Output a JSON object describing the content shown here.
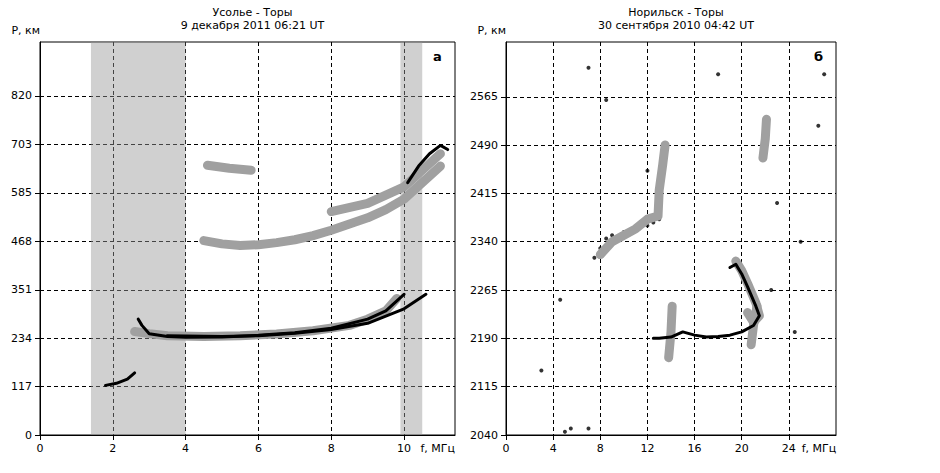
{
  "chart_data": [
    {
      "type": "line",
      "title": "Усолье - Торы",
      "subtitle": "9 декабря 2011 06:21 UT",
      "annotation": "а",
      "x_label": "f, МГц",
      "y_label": "P, км",
      "xlim": [
        0,
        11.4
      ],
      "ylim": [
        0,
        950
      ],
      "xticks": [
        0,
        2,
        4,
        6,
        8,
        10
      ],
      "yticks": [
        0,
        117,
        234,
        351,
        468,
        585,
        703,
        820
      ],
      "grid": true,
      "noise_bands": [
        [
          1.4,
          4.0
        ],
        [
          9.9,
          10.5
        ]
      ],
      "series": [
        {
          "type": "line",
          "color": "#a0a0a0",
          "line_style": "thick",
          "values": [
            [
              2.6,
              250
            ],
            [
              3,
              245
            ],
            [
              3.5,
              240
            ],
            [
              4.5,
              238
            ],
            [
              5.5,
              240
            ],
            [
              6.5,
              244
            ],
            [
              7.5,
              252
            ],
            [
              8.5,
              265
            ],
            [
              9,
              280
            ],
            [
              9.5,
              300
            ],
            [
              9.8,
              330
            ]
          ]
        },
        {
          "type": "line",
          "color": "#a0a0a0",
          "line_style": "thick",
          "values": [
            [
              4.5,
              470
            ],
            [
              5,
              462
            ],
            [
              5.5,
              458
            ],
            [
              6,
              460
            ],
            [
              6.5,
              465
            ],
            [
              7,
              472
            ],
            [
              7.5,
              482
            ],
            [
              8,
              495
            ],
            [
              8.5,
              510
            ],
            [
              9,
              525
            ],
            [
              9.5,
              545
            ],
            [
              10,
              570
            ],
            [
              10.5,
              610
            ],
            [
              11,
              650
            ]
          ]
        },
        {
          "type": "line",
          "color": "#a0a0a0",
          "line_style": "thick",
          "values": [
            [
              8,
              540
            ],
            [
              9,
              560
            ],
            [
              9.5,
              580
            ],
            [
              10,
              600
            ],
            [
              10.5,
              640
            ],
            [
              11,
              680
            ]
          ]
        },
        {
          "type": "line",
          "color": "#a0a0a0",
          "line_style": "thick",
          "values": [
            [
              4.6,
              652
            ],
            [
              5.2,
              645
            ],
            [
              5.8,
              640
            ]
          ]
        },
        {
          "type": "line",
          "color": "#000000",
          "line_style": "solid",
          "values": [
            [
              1.8,
              120
            ],
            [
              2.1,
              125
            ],
            [
              2.4,
              135
            ],
            [
              2.6,
              150
            ]
          ]
        },
        {
          "type": "line",
          "color": "#000000",
          "line_style": "solid",
          "values": [
            [
              2.7,
              280
            ],
            [
              2.8,
              265
            ],
            [
              3,
              245
            ],
            [
              3.5,
              238
            ],
            [
              4,
              236
            ],
            [
              5,
              237
            ],
            [
              6,
              241
            ],
            [
              7,
              247
            ],
            [
              8,
              258
            ],
            [
              9,
              280
            ],
            [
              9.5,
              300
            ],
            [
              10,
              340
            ]
          ]
        },
        {
          "type": "line",
          "color": "#000000",
          "line_style": "solid",
          "values": [
            [
              3.5,
              240
            ],
            [
              5,
              238
            ],
            [
              6,
              240
            ],
            [
              7,
              246
            ],
            [
              8,
              255
            ],
            [
              9,
              270
            ],
            [
              10,
              305
            ],
            [
              10.6,
              340
            ]
          ]
        },
        {
          "type": "line",
          "color": "#000000",
          "line_style": "solid",
          "values": [
            [
              10.1,
              610
            ],
            [
              10.4,
              650
            ],
            [
              10.7,
              680
            ],
            [
              11,
              700
            ],
            [
              11.2,
              690
            ]
          ]
        }
      ]
    },
    {
      "type": "line",
      "title": "Норильск - Торы",
      "subtitle": "30 сентября 2010 04:42 UT",
      "annotation": "б",
      "x_label": "f, МГц",
      "y_label": "P, км",
      "xlim": [
        0,
        28
      ],
      "ylim": [
        2040,
        2650
      ],
      "xticks": [
        0,
        4,
        8,
        12,
        16,
        20,
        24
      ],
      "yticks": [
        2040,
        2115,
        2190,
        2265,
        2340,
        2415,
        2490,
        2565
      ],
      "grid": true,
      "series": [
        {
          "type": "line",
          "color": "#a0a0a0",
          "line_style": "thick",
          "values": [
            [
              8,
              2320
            ],
            [
              9,
              2340
            ],
            [
              10,
              2350
            ],
            [
              11,
              2360
            ],
            [
              12,
              2375
            ],
            [
              12.9,
              2380
            ],
            [
              13,
              2420
            ],
            [
              13.3,
              2460
            ],
            [
              13.5,
              2490
            ]
          ]
        },
        {
          "type": "line",
          "color": "#a0a0a0",
          "line_style": "thick",
          "values": [
            [
              21.8,
              2470
            ],
            [
              22,
              2500
            ],
            [
              22.1,
              2530
            ]
          ]
        },
        {
          "type": "line",
          "color": "#a0a0a0",
          "line_style": "thick",
          "values": [
            [
              20.8,
              2180
            ],
            [
              21,
              2210
            ],
            [
              21.3,
              2240
            ]
          ]
        },
        {
          "type": "line",
          "color": "#a0a0a0",
          "line_style": "thick",
          "values": [
            [
              13.8,
              2160
            ],
            [
              14,
              2200
            ],
            [
              14.1,
              2240
            ]
          ]
        },
        {
          "type": "line",
          "color": "#a0a0a0",
          "line_style": "thick",
          "values": [
            [
              20.5,
              2230
            ],
            [
              21,
              2215
            ],
            [
              21.5,
              2225
            ],
            [
              21.2,
              2245
            ],
            [
              20.5,
              2275
            ],
            [
              20,
              2295
            ],
            [
              19.5,
              2310
            ]
          ]
        },
        {
          "type": "line",
          "color": "#000000",
          "line_style": "solid",
          "values": [
            [
              12.5,
              2190
            ],
            [
              13,
              2190
            ],
            [
              14,
              2192
            ],
            [
              15,
              2200
            ],
            [
              16,
              2195
            ],
            [
              17,
              2192
            ],
            [
              18,
              2193
            ],
            [
              19,
              2195
            ],
            [
              20,
              2200
            ],
            [
              21,
              2210
            ],
            [
              21.5,
              2225
            ],
            [
              21.2,
              2240
            ],
            [
              20.5,
              2270
            ],
            [
              20,
              2290
            ],
            [
              19.5,
              2305
            ],
            [
              19,
              2300
            ]
          ]
        },
        {
          "type": "scatter",
          "color": "#000000",
          "marker": "circle",
          "values": [
            [
              7.5,
              2315
            ],
            [
              8,
              2330
            ],
            [
              8.5,
              2345
            ],
            [
              9,
              2350
            ],
            [
              10,
              2355
            ],
            [
              11,
              2360
            ],
            [
              12,
              2365
            ],
            [
              12.5,
              2370
            ],
            [
              13,
              2375
            ],
            [
              5,
              2045
            ],
            [
              5.5,
              2050
            ],
            [
              7,
              2050
            ],
            [
              4.6,
              2250
            ],
            [
              3,
              2140
            ],
            [
              26.5,
              2520
            ],
            [
              23,
              2400
            ],
            [
              25,
              2340
            ],
            [
              22.5,
              2265
            ],
            [
              24.5,
              2200
            ],
            [
              27,
              2600
            ],
            [
              18,
              2600
            ],
            [
              7,
              2610
            ],
            [
              12,
              2450
            ],
            [
              8.5,
              2560
            ]
          ]
        }
      ]
    }
  ]
}
